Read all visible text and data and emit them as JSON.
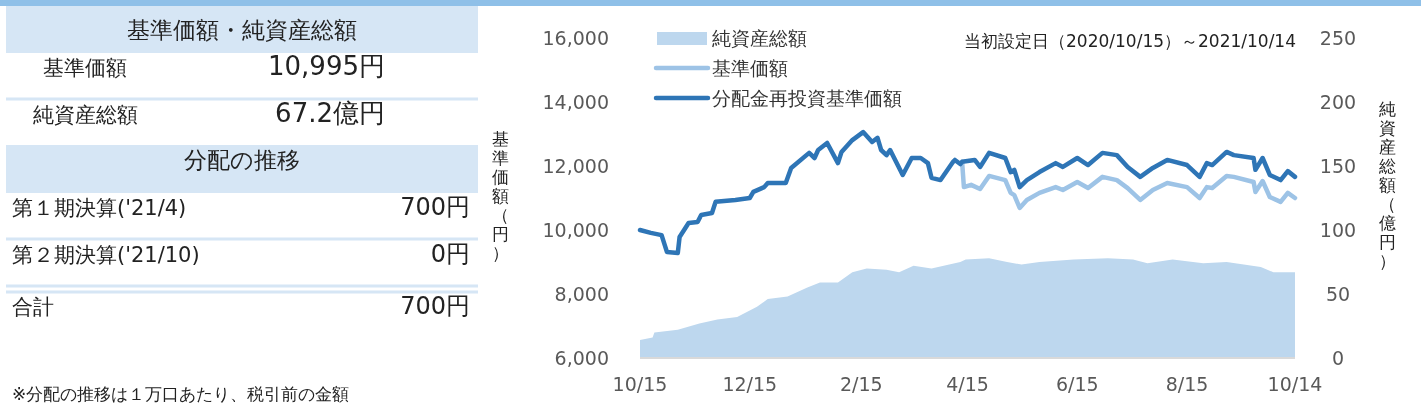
{
  "chart_data": [
    {
      "type": "other",
      "title": "基準価額・純資産総額",
      "annotations": [
        "基準価額",
        "10,995円",
        "純資産総額",
        "67.2億円",
        "分配の推移",
        "第１期決算('21/4)",
        "700円",
        "第２期決算('21/10)",
        "0円",
        "合計",
        "700円",
        "※分配の推移は１万口あたり、税引前の金額"
      ]
    },
    {
      "type": "line",
      "ylabel": "基準価額（円）",
      "y2label": "純資産総額（億円）",
      "annotations": [
        "当初設定日（2020/10/15）～2021/10/14"
      ],
      "legend": "top left",
      "xlim": [
        "2020-10-15",
        "2021-10-14"
      ],
      "xticks": [
        {
          "value": "2020-10-15",
          "label": "10/15"
        },
        {
          "value": "2020-12-15",
          "label": "12/15"
        },
        {
          "value": "2021-02-15",
          "label": "2/15"
        },
        {
          "value": "2021-04-15",
          "label": "4/15"
        },
        {
          "value": "2021-06-15",
          "label": "6/15"
        },
        {
          "value": "2021-08-15",
          "label": "8/15"
        },
        {
          "value": "2021-10-14",
          "label": "10/14"
        }
      ],
      "ylim": [
        6000,
        16000
      ],
      "yticks": [
        {
          "value": 6000,
          "label": "6,000"
        },
        {
          "value": 8000,
          "label": "8,000"
        },
        {
          "value": 10000,
          "label": "10,000"
        },
        {
          "value": 12000,
          "label": "12,000"
        },
        {
          "value": 14000,
          "label": "14,000"
        },
        {
          "value": 16000,
          "label": "16,000"
        }
      ],
      "y2lim": [
        0,
        250
      ],
      "y2ticks": [
        0,
        50,
        100,
        150,
        200,
        250
      ],
      "series": [
        {
          "name": "純資産総額",
          "type": "area",
          "axis": "y2",
          "color": "#bdd7ee",
          "x": [
            "2020-10-15",
            "2020-10-22",
            "2020-10-23",
            "2020-11-05",
            "2020-11-17",
            "2020-11-27",
            "2020-12-08",
            "2020-12-19",
            "2020-12-25",
            "2021-01-05",
            "2021-01-16",
            "2021-01-23",
            "2021-02-02",
            "2021-02-10",
            "2021-02-18",
            "2021-03-01",
            "2021-03-08",
            "2021-03-16",
            "2021-03-26",
            "2021-04-11",
            "2021-04-14",
            "2021-04-27",
            "2021-05-07",
            "2021-05-15",
            "2021-05-25",
            "2021-06-13",
            "2021-07-02",
            "2021-07-16",
            "2021-07-24",
            "2021-08-07",
            "2021-08-24",
            "2021-09-06",
            "2021-09-25",
            "2021-10-02",
            "2021-10-13",
            "2021-10-14"
          ],
          "values": [
            14,
            16,
            20,
            22,
            27,
            30,
            32,
            40,
            46,
            48,
            55,
            59,
            59,
            67,
            70,
            69,
            67,
            72,
            70,
            75,
            77,
            78,
            75,
            73,
            75,
            77,
            78,
            77,
            74,
            77,
            74,
            75,
            71,
            67,
            67,
            67
          ]
        },
        {
          "name": "基準価額",
          "type": "line",
          "color": "#9dc3e6",
          "x": [
            "2021-04-12",
            "2021-04-13",
            "2021-04-17",
            "2021-04-22",
            "2021-04-27",
            "2021-05-06",
            "2021-05-09",
            "2021-05-11",
            "2021-05-14",
            "2021-05-18",
            "2021-05-25",
            "2021-06-03",
            "2021-06-07",
            "2021-06-15",
            "2021-06-21",
            "2021-06-29",
            "2021-07-07",
            "2021-07-13",
            "2021-07-20",
            "2021-07-27",
            "2021-08-04",
            "2021-08-15",
            "2021-08-22",
            "2021-08-26",
            "2021-08-29",
            "2021-09-06",
            "2021-09-10",
            "2021-09-21",
            "2021-09-22",
            "2021-09-26",
            "2021-09-30",
            "2021-10-06",
            "2021-10-10",
            "2021-10-14"
          ],
          "values": [
            12130,
            11340,
            11410,
            11280,
            11690,
            11560,
            11160,
            11090,
            10690,
            10940,
            11160,
            11340,
            11250,
            11500,
            11310,
            11660,
            11560,
            11310,
            10940,
            11250,
            11470,
            11340,
            11000,
            11340,
            11310,
            11690,
            11660,
            11500,
            11190,
            11530,
            11030,
            10880,
            11160,
            11000
          ]
        },
        {
          "name": "分配金再投資基準価額",
          "type": "line",
          "color": "#2e75b6",
          "x": [
            "2020-10-15",
            "2020-10-21",
            "2020-10-27",
            "2020-10-30",
            "2020-11-05",
            "2020-11-06",
            "2020-11-11",
            "2020-11-16",
            "2020-11-18",
            "2020-11-24",
            "2020-11-26",
            "2020-12-07",
            "2020-12-15",
            "2020-12-17",
            "2020-12-23",
            "2020-12-25",
            "2021-01-04",
            "2021-01-07",
            "2021-01-17",
            "2021-01-20",
            "2021-01-22",
            "2021-01-27",
            "2021-02-02",
            "2021-02-04",
            "2021-02-10",
            "2021-02-16",
            "2021-02-21",
            "2021-02-24",
            "2021-02-26",
            "2021-03-01",
            "2021-03-03",
            "2021-03-10",
            "2021-03-15",
            "2021-03-20",
            "2021-03-24",
            "2021-03-26",
            "2021-03-31",
            "2021-04-07",
            "2021-04-08",
            "2021-04-11",
            "2021-04-12",
            "2021-04-19",
            "2021-04-22",
            "2021-04-27",
            "2021-05-06",
            "2021-05-09",
            "2021-05-11",
            "2021-05-14",
            "2021-05-18",
            "2021-05-25",
            "2021-06-03",
            "2021-06-07",
            "2021-06-15",
            "2021-06-21",
            "2021-06-29",
            "2021-07-07",
            "2021-07-13",
            "2021-07-20",
            "2021-07-27",
            "2021-08-04",
            "2021-08-15",
            "2021-08-22",
            "2021-08-26",
            "2021-08-29",
            "2021-09-06",
            "2021-09-10",
            "2021-09-21",
            "2021-09-22",
            "2021-09-26",
            "2021-09-30",
            "2021-10-06",
            "2021-10-10",
            "2021-10-14"
          ],
          "values": [
            10000,
            9910,
            9840,
            9310,
            9280,
            9780,
            10220,
            10250,
            10470,
            10530,
            10880,
            10940,
            11000,
            11190,
            11340,
            11470,
            11470,
            11940,
            12410,
            12250,
            12500,
            12720,
            12090,
            12440,
            12810,
            13060,
            12750,
            12880,
            12500,
            12340,
            12500,
            11720,
            12250,
            12250,
            12090,
            11630,
            11560,
            12130,
            12190,
            12060,
            12130,
            12190,
            11970,
            12410,
            12250,
            11810,
            11880,
            11340,
            11560,
            11810,
            12090,
            11970,
            12250,
            12030,
            12410,
            12340,
            11970,
            11660,
            11940,
            12190,
            12030,
            11660,
            12090,
            12030,
            12440,
            12340,
            12250,
            11880,
            12250,
            11720,
            11560,
            11840,
            11660
          ]
        }
      ]
    }
  ]
}
